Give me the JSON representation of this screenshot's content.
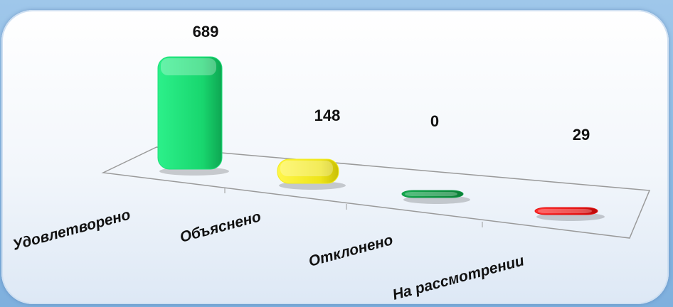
{
  "chart_data": {
    "type": "bar",
    "categories": [
      "Удовлетворено",
      "Объяснено",
      "Отклонено",
      "На рассмотрении"
    ],
    "values": [
      689,
      148,
      0,
      29
    ],
    "colors": [
      "#1ee07a",
      "#f2ec1a",
      "#0f9a45",
      "#e41212"
    ],
    "ylim": [
      0,
      689
    ],
    "grid": false,
    "legend": "none"
  }
}
